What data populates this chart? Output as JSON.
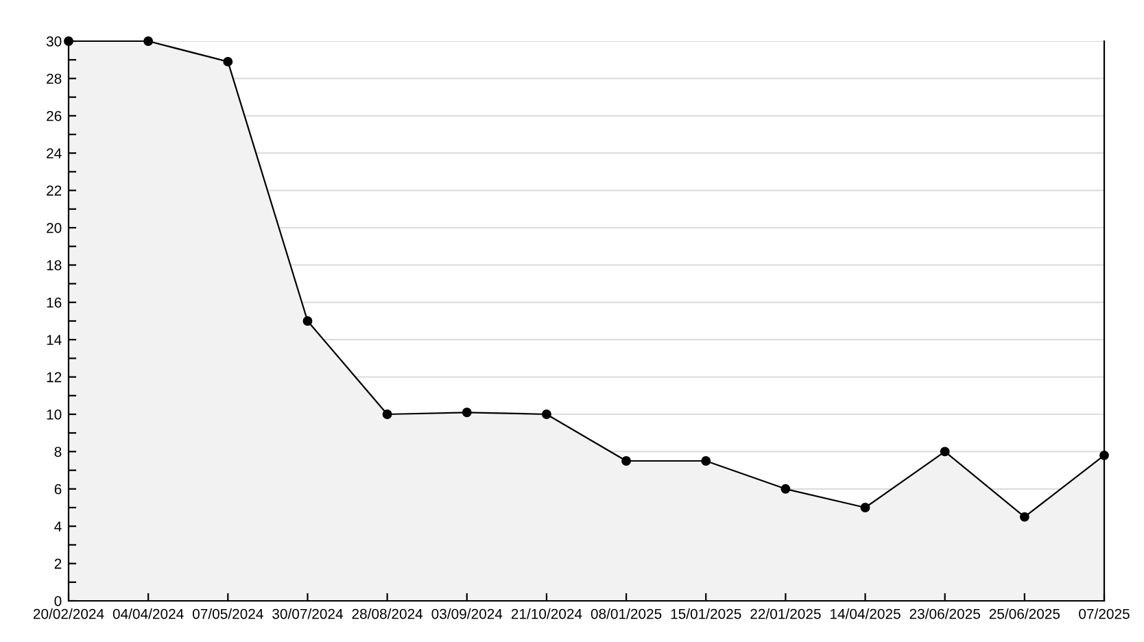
{
  "chart_data": {
    "type": "area",
    "categories": [
      "20/02/2024",
      "04/04/2024",
      "07/05/2024",
      "30/07/2024",
      "28/08/2024",
      "03/09/2024",
      "21/10/2024",
      "08/01/2025",
      "15/01/2025",
      "22/01/2025",
      "14/04/2025",
      "23/06/2025",
      "25/06/2025",
      "07/2025"
    ],
    "series": [
      {
        "color": "#000000",
        "values": [
          30,
          30,
          28.9,
          15,
          10,
          10.1,
          10,
          7.5,
          7.5,
          6,
          5,
          8,
          4.5,
          7.8
        ]
      }
    ],
    "ylim": [
      0,
      30
    ],
    "yticks": [
      0,
      {
        "value": 1,
        "label": null
      },
      2,
      {
        "value": 3,
        "label": null
      },
      4,
      {
        "value": 5,
        "label": null
      },
      6,
      {
        "value": 7,
        "label": null
      },
      8,
      {
        "value": 9,
        "label": null
      },
      10,
      {
        "value": 11,
        "label": null
      },
      12,
      {
        "value": 13,
        "label": null
      },
      14,
      {
        "value": 15,
        "label": null
      },
      16,
      {
        "value": 17,
        "label": null
      },
      18,
      {
        "value": 19,
        "label": null
      },
      20,
      {
        "value": 21,
        "label": null
      },
      22,
      {
        "value": 23,
        "label": null
      },
      24,
      {
        "value": 25,
        "label": null
      },
      26,
      {
        "value": 27,
        "label": null
      },
      28,
      {
        "value": 29,
        "label": null
      },
      30
    ],
    "grid": "y",
    "marker": "circle",
    "line_style": "solid"
  }
}
